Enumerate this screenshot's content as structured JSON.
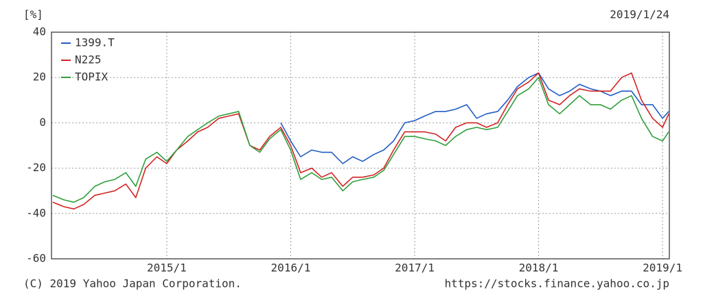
{
  "chart_data": {
    "type": "line",
    "unit_label": "[%]",
    "date": "2019/1/24",
    "copyright": "(C) 2019 Yahoo Japan Corporation.",
    "source": "https://stocks.finance.yahoo.co.jp",
    "x": [
      2014.08,
      2014.17,
      2014.25,
      2014.33,
      2014.42,
      2014.5,
      2014.58,
      2014.67,
      2014.75,
      2014.83,
      2014.92,
      2015,
      2015.08,
      2015.17,
      2015.25,
      2015.33,
      2015.42,
      2015.5,
      2015.58,
      2015.67,
      2015.75,
      2015.83,
      2015.92,
      2016,
      2016.08,
      2016.17,
      2016.25,
      2016.33,
      2016.42,
      2016.5,
      2016.58,
      2016.67,
      2016.75,
      2016.83,
      2016.92,
      2017,
      2017.08,
      2017.17,
      2017.25,
      2017.33,
      2017.42,
      2017.5,
      2017.58,
      2017.67,
      2017.75,
      2017.83,
      2017.92,
      2018,
      2018.08,
      2018.17,
      2018.25,
      2018.33,
      2018.42,
      2018.5,
      2018.58,
      2018.67,
      2018.75,
      2018.83,
      2018.92,
      2019,
      2019.05
    ],
    "series": [
      {
        "name": "1399.T",
        "color": "#1f5cc4",
        "values": [
          null,
          null,
          null,
          null,
          null,
          null,
          null,
          null,
          null,
          null,
          null,
          null,
          null,
          null,
          null,
          null,
          null,
          null,
          null,
          null,
          null,
          null,
          0,
          -8,
          -15,
          -12,
          -13,
          -13,
          -18,
          -15,
          -17,
          -14,
          -12,
          -8,
          0,
          1,
          3,
          5,
          5,
          6,
          8,
          2,
          4,
          5,
          10,
          16,
          20,
          22,
          15,
          12,
          14,
          17,
          15,
          14,
          12,
          14,
          14,
          8,
          8,
          2,
          5
        ]
      },
      {
        "name": "N225",
        "color": "#d42222",
        "values": [
          -35,
          -37,
          -38,
          -36,
          -32,
          -31,
          -30,
          -27,
          -33,
          -20,
          -15,
          -18,
          -12,
          -8,
          -4,
          -2,
          2,
          3,
          4,
          -10,
          -12,
          -6,
          -2,
          -10,
          -22,
          -20,
          -24,
          -22,
          -28,
          -24,
          -24,
          -23,
          -20,
          -12,
          -4,
          -4,
          -4,
          -5,
          -8,
          -2,
          0,
          0,
          -2,
          0,
          8,
          15,
          18,
          22,
          10,
          8,
          12,
          15,
          14,
          14,
          14,
          20,
          22,
          10,
          2,
          -2,
          4
        ]
      },
      {
        "name": "TOPIX",
        "color": "#2f9e3a",
        "values": [
          -32,
          -34,
          -35,
          -33,
          -28,
          -26,
          -25,
          -22,
          -28,
          -16,
          -13,
          -17,
          -12,
          -6,
          -3,
          0,
          3,
          4,
          5,
          -10,
          -13,
          -7,
          -3,
          -12,
          -25,
          -22,
          -25,
          -24,
          -30,
          -26,
          -25,
          -24,
          -21,
          -14,
          -6,
          -6,
          -7,
          -8,
          -10,
          -6,
          -3,
          -2,
          -3,
          -2,
          5,
          12,
          15,
          20,
          8,
          4,
          8,
          12,
          8,
          8,
          6,
          10,
          12,
          2,
          -6,
          -8,
          -4
        ]
      }
    ],
    "xlim": [
      2014.07,
      2019.055
    ],
    "xticks": [
      {
        "value": 2015,
        "label": "2015/1"
      },
      {
        "value": 2016,
        "label": "2016/1"
      },
      {
        "value": 2017,
        "label": "2017/1"
      },
      {
        "value": 2018,
        "label": "2018/1"
      },
      {
        "value": 2019,
        "label": "2019/1"
      }
    ],
    "ylim": [
      -60,
      40
    ],
    "yticks": [
      -60,
      -40,
      -20,
      0,
      20,
      40
    ],
    "grid": true
  }
}
